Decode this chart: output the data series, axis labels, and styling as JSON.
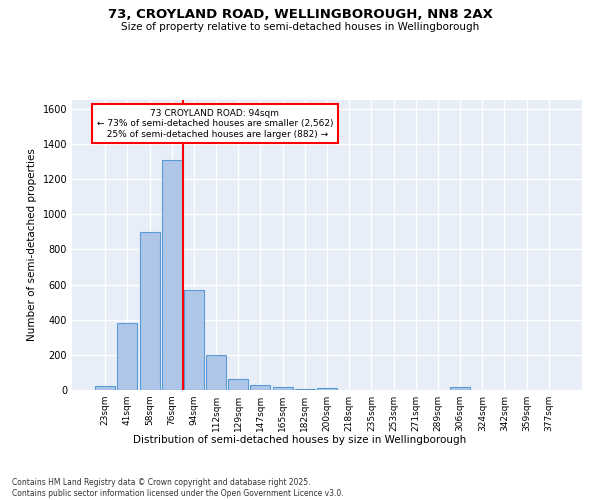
{
  "title": "73, CROYLAND ROAD, WELLINGBOROUGH, NN8 2AX",
  "subtitle": "Size of property relative to semi-detached houses in Wellingborough",
  "xlabel": "Distribution of semi-detached houses by size in Wellingborough",
  "ylabel": "Number of semi-detached properties",
  "bar_labels": [
    "23sqm",
    "41sqm",
    "58sqm",
    "76sqm",
    "94sqm",
    "112sqm",
    "129sqm",
    "147sqm",
    "165sqm",
    "182sqm",
    "200sqm",
    "218sqm",
    "235sqm",
    "253sqm",
    "271sqm",
    "289sqm",
    "306sqm",
    "324sqm",
    "342sqm",
    "359sqm",
    "377sqm"
  ],
  "bar_values": [
    20,
    380,
    900,
    1310,
    570,
    200,
    65,
    30,
    15,
    5,
    12,
    0,
    0,
    0,
    0,
    0,
    15,
    0,
    0,
    0,
    0
  ],
  "bar_color": "#aec6e8",
  "bar_edge_color": "#5b9bd5",
  "property_line_color": "red",
  "annotation_line1": "73 CROYLAND ROAD: 94sqm",
  "annotation_line2": "← 73% of semi-detached houses are smaller (2,562)",
  "annotation_line3": "  25% of semi-detached houses are larger (882) →",
  "ylim": [
    0,
    1650
  ],
  "yticks": [
    0,
    200,
    400,
    600,
    800,
    1000,
    1200,
    1400,
    1600
  ],
  "bg_color": "#e8eef8",
  "grid_color": "white",
  "footer": "Contains HM Land Registry data © Crown copyright and database right 2025.\nContains public sector information licensed under the Open Government Licence v3.0."
}
